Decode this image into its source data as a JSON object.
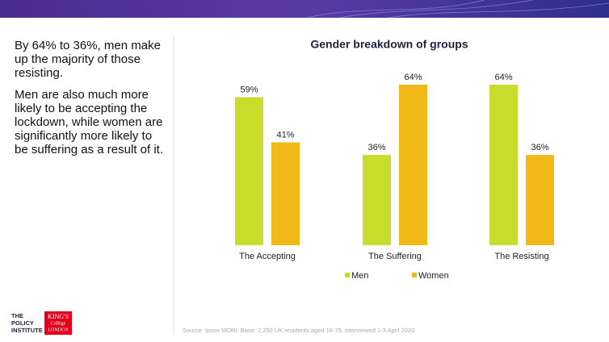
{
  "slide": {
    "paragraphs": [
      "By 64% to 36%, men make up the majority of those resisting.",
      "Men are also much more likely to be accepting the lockdown, while women are significantly more likely to be suffering as a result of it."
    ],
    "source": "Source: Ipsos MORI: Base: 2,250 UK residents aged 16-75, interviewed 1-3 April 2020",
    "logo_left": [
      "THE",
      "POLICY",
      "INSTITUTE"
    ],
    "logo_right": [
      "KING'S",
      "College",
      "LONDON"
    ]
  },
  "chart_data": {
    "type": "bar",
    "title": "Gender breakdown of groups",
    "categories": [
      "The Accepting",
      "The Suffering",
      "The Resisting"
    ],
    "series": [
      {
        "name": "Men",
        "color": "#c9dc2b",
        "values": [
          59,
          36,
          64
        ],
        "value_labels": [
          "59%",
          "36%",
          "64%"
        ]
      },
      {
        "name": "Women",
        "color": "#f2b817",
        "values": [
          41,
          64,
          36
        ],
        "value_labels": [
          "41%",
          "64%",
          "36%"
        ]
      }
    ]
  }
}
